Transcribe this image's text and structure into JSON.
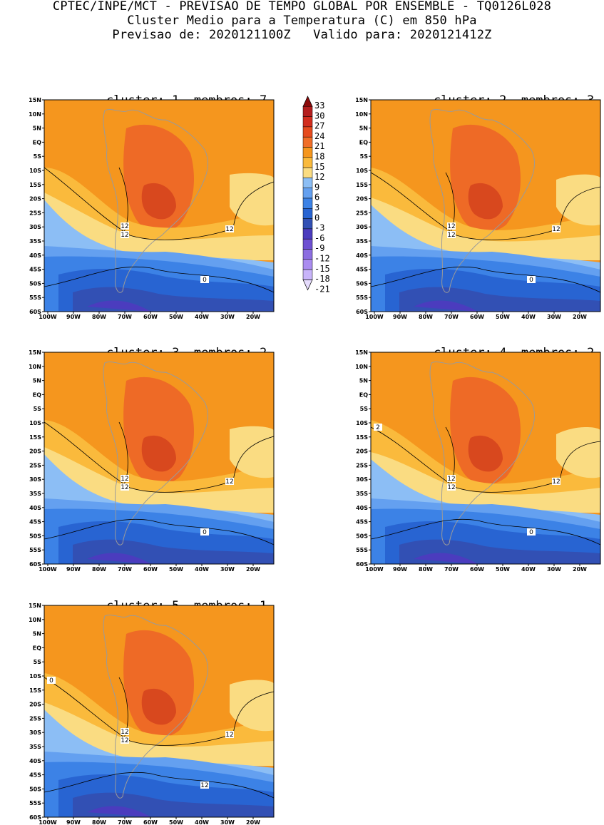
{
  "header": {
    "line1": "CPTEC/INPE/MCT - PREVISAO DE TEMPO GLOBAL POR ENSEMBLE - TQ0126L028",
    "line2": "Cluster Medio para a Temperatura (C) em 850 hPa",
    "line3": "Previsao de: 2020121100Z   Valido para: 2020121412Z"
  },
  "axes": {
    "lat_labels": [
      "15N",
      "10N",
      "5N",
      "EQ",
      "5S",
      "10S",
      "15S",
      "20S",
      "25S",
      "30S",
      "35S",
      "40S",
      "45S",
      "50S",
      "55S",
      "60S"
    ],
    "lon_labels": [
      "100W",
      "90W",
      "80W",
      "70W",
      "60W",
      "50W",
      "40W",
      "30W",
      "20W"
    ]
  },
  "colorbar": {
    "levels": [
      "33",
      "30",
      "27",
      "24",
      "21",
      "18",
      "15",
      "12",
      "9",
      "6",
      "3",
      "0",
      "-3",
      "-6",
      "-9",
      "-12",
      "-15",
      "-18",
      "-21"
    ],
    "colors": [
      "#8c0a0a",
      "#b41e1e",
      "#d22d1e",
      "#e64b1e",
      "#f06e28",
      "#f5961e",
      "#faba3c",
      "#fadc82",
      "#8cbef5",
      "#64a0f0",
      "#3c82e6",
      "#2864d2",
      "#3250b4",
      "#4b3cbe",
      "#6e50d2",
      "#8c6ee1",
      "#aa8cf0",
      "#c8b4fa",
      "#e6dcfd"
    ]
  },
  "panels": [
    {
      "cluster_label": "cluster:",
      "cluster": "1",
      "members_label": "membros:",
      "members": "7",
      "contours": [
        "12",
        "12",
        "12",
        "0"
      ]
    },
    {
      "cluster_label": "cluster:",
      "cluster": "2",
      "members_label": "membros:",
      "members": "3",
      "contours": [
        "12",
        "12",
        "12",
        "0"
      ]
    },
    {
      "cluster_label": "cluster:",
      "cluster": "3",
      "members_label": "membros:",
      "members": "2",
      "contours": [
        "12",
        "12",
        "12",
        "0"
      ]
    },
    {
      "cluster_label": "cluster:",
      "cluster": "4",
      "members_label": "membros:",
      "members": "2",
      "contours": [
        "12",
        "12",
        "12",
        "0",
        "2"
      ]
    },
    {
      "cluster_label": "cluster:",
      "cluster": "5",
      "members_label": "membros:",
      "members": "1",
      "contours": [
        "12",
        "12",
        "12",
        "12",
        "0"
      ]
    }
  ]
}
